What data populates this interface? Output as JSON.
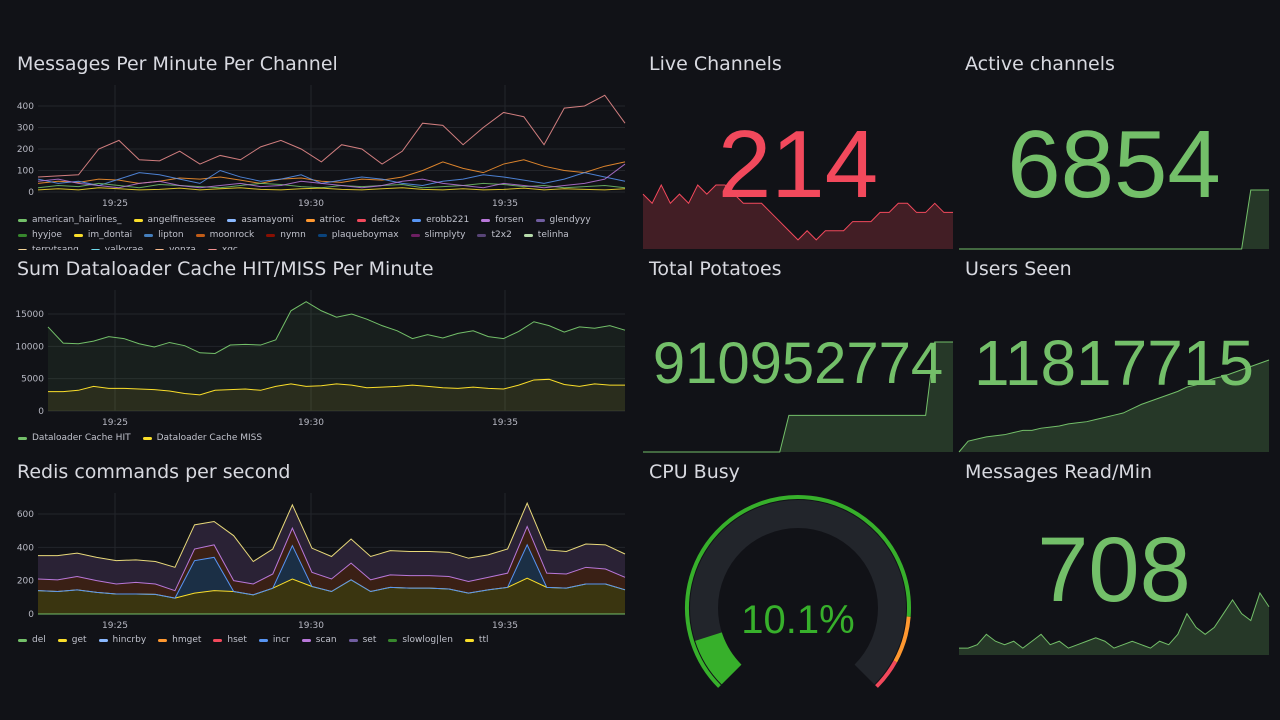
{
  "colors": {
    "green": "#73bf69",
    "red": "#f2495c",
    "grid": "#23252b"
  },
  "time_ticks": [
    "19:25",
    "19:30",
    "19:35"
  ],
  "messages_panel": {
    "title": "Messages Per Minute Per Channel",
    "y_ticks": [
      "0",
      "100",
      "200",
      "300",
      "400"
    ],
    "legend": [
      {
        "name": "american_hairlines_",
        "color": "#73bf69"
      },
      {
        "name": "angelfinesseee",
        "color": "#fade2a"
      },
      {
        "name": "asamayomi",
        "color": "#8ab8ff"
      },
      {
        "name": "atrioc",
        "color": "#ff9830"
      },
      {
        "name": "deft2x",
        "color": "#f2495c"
      },
      {
        "name": "erobb221",
        "color": "#5794f2"
      },
      {
        "name": "forsen",
        "color": "#b877d9"
      },
      {
        "name": "glendyyy",
        "color": "#705da0"
      },
      {
        "name": "hyyjoe",
        "color": "#37872d"
      },
      {
        "name": "im_dontai",
        "color": "#fade2a"
      },
      {
        "name": "lipton",
        "color": "#447ebc"
      },
      {
        "name": "moonrock",
        "color": "#c15c17"
      },
      {
        "name": "nymn",
        "color": "#890f02"
      },
      {
        "name": "plaqueboymax",
        "color": "#0a437c"
      },
      {
        "name": "slimplyty",
        "color": "#6d1f62"
      },
      {
        "name": "t2x2",
        "color": "#584477"
      },
      {
        "name": "telinha",
        "color": "#b7dbab"
      },
      {
        "name": "terrytsang",
        "color": "#f4d598"
      },
      {
        "name": "valkyrae",
        "color": "#70dbed"
      },
      {
        "name": "vonza",
        "color": "#f9ba8f"
      },
      {
        "name": "xqc",
        "color": "#f29191"
      }
    ],
    "series": [
      {
        "color": "#f29191",
        "values": [
          70,
          75,
          80,
          200,
          240,
          150,
          145,
          190,
          130,
          170,
          150,
          210,
          240,
          200,
          140,
          220,
          200,
          130,
          190,
          320,
          310,
          220,
          300,
          370,
          350,
          220,
          390,
          400,
          450,
          320
        ]
      },
      {
        "color": "#ff9830",
        "values": [
          40,
          50,
          45,
          60,
          55,
          40,
          50,
          65,
          60,
          70,
          55,
          40,
          60,
          65,
          50,
          45,
          60,
          55,
          70,
          100,
          140,
          110,
          90,
          130,
          150,
          120,
          100,
          90,
          120,
          140
        ]
      },
      {
        "color": "#5794f2",
        "values": [
          60,
          40,
          50,
          30,
          60,
          90,
          80,
          60,
          40,
          100,
          70,
          50,
          60,
          80,
          40,
          55,
          70,
          60,
          40,
          30,
          50,
          60,
          80,
          70,
          55,
          40,
          60,
          90,
          70,
          50
        ]
      },
      {
        "color": "#73bf69",
        "values": [
          20,
          30,
          25,
          40,
          30,
          20,
          35,
          30,
          25,
          20,
          30,
          40,
          35,
          25,
          20,
          30,
          25,
          30,
          35,
          20,
          25,
          30,
          40,
          35,
          25,
          30,
          20,
          25,
          30,
          20
        ]
      },
      {
        "color": "#b877d9",
        "values": [
          50,
          60,
          40,
          30,
          20,
          40,
          50,
          30,
          20,
          30,
          40,
          25,
          30,
          50,
          40,
          30,
          20,
          30,
          50,
          60,
          40,
          30,
          20,
          40,
          30,
          20,
          30,
          40,
          60,
          130
        ]
      },
      {
        "color": "#fade2a",
        "values": [
          10,
          15,
          10,
          20,
          15,
          10,
          12,
          18,
          10,
          15,
          20,
          12,
          10,
          15,
          18,
          12,
          10,
          15,
          20,
          12,
          10,
          15,
          10,
          12,
          18,
          10,
          15,
          12,
          10,
          15
        ]
      }
    ]
  },
  "cache_panel": {
    "title": "Sum Dataloader Cache HIT/MISS Per Minute",
    "y_ticks": [
      "0",
      "5000",
      "10000",
      "15000"
    ],
    "legend": [
      {
        "name": "Dataloader Cache HIT",
        "color": "#73bf69"
      },
      {
        "name": "Dataloader Cache MISS",
        "color": "#fade2a"
      }
    ],
    "series": [
      {
        "color": "#73bf69",
        "values": [
          13000,
          10500,
          10400,
          10800,
          11500,
          11200,
          10400,
          9900,
          10600,
          10100,
          9000,
          8900,
          10200,
          10300,
          10200,
          11000,
          15500,
          16900,
          15500,
          14500,
          15000,
          14200,
          13200,
          12400,
          11200,
          11800,
          11300,
          12000,
          12400,
          11500,
          11200,
          12300,
          13800,
          13200,
          12200,
          13000,
          12800,
          13200,
          12500
        ]
      },
      {
        "color": "#fade2a",
        "values": [
          3000,
          3000,
          3200,
          3800,
          3500,
          3500,
          3400,
          3300,
          3100,
          2700,
          2500,
          3200,
          3300,
          3400,
          3200,
          3800,
          4200,
          3800,
          3900,
          4200,
          4000,
          3600,
          3700,
          3800,
          4000,
          3800,
          3600,
          3500,
          3700,
          3500,
          3400,
          4000,
          4800,
          4900,
          4100,
          3800,
          4200,
          4000,
          4000
        ]
      }
    ]
  },
  "redis_panel": {
    "title": "Redis commands per second",
    "y_ticks": [
      "0",
      "200",
      "400",
      "600"
    ],
    "legend": [
      {
        "name": "del",
        "color": "#73bf69"
      },
      {
        "name": "get",
        "color": "#fade2a"
      },
      {
        "name": "hincrby",
        "color": "#8ab8ff"
      },
      {
        "name": "hmget",
        "color": "#ff9830"
      },
      {
        "name": "hset",
        "color": "#f2495c"
      },
      {
        "name": "incr",
        "color": "#5794f2"
      },
      {
        "name": "scan",
        "color": "#b877d9"
      },
      {
        "name": "set",
        "color": "#705da0"
      },
      {
        "name": "slowlog|len",
        "color": "#37872d"
      },
      {
        "name": "ttl",
        "color": "#fade2a"
      }
    ],
    "layers": [
      {
        "color": "#fade2a",
        "fill": "#3a3510",
        "values": [
          140,
          135,
          145,
          130,
          120,
          120,
          118,
          95,
          125,
          140,
          135,
          115,
          155,
          210,
          165,
          135,
          205,
          135,
          160,
          155,
          155,
          150,
          125,
          145,
          160,
          215,
          160,
          155,
          180,
          180,
          145
        ]
      },
      {
        "color": "#5794f2",
        "fill": "#1b2f45",
        "values": [
          140,
          135,
          145,
          130,
          120,
          120,
          118,
          95,
          320,
          340,
          135,
          115,
          155,
          410,
          165,
          135,
          205,
          135,
          160,
          155,
          155,
          150,
          125,
          145,
          160,
          415,
          160,
          155,
          180,
          180,
          145
        ]
      },
      {
        "color": "#b877d9",
        "fill": "#3a2015",
        "values": [
          210,
          205,
          225,
          200,
          180,
          190,
          180,
          140,
          390,
          415,
          200,
          180,
          240,
          515,
          250,
          210,
          305,
          205,
          235,
          230,
          230,
          225,
          195,
          220,
          245,
          525,
          245,
          240,
          280,
          270,
          220
        ]
      },
      {
        "color": "#e8d97a",
        "fill": "#2a2235",
        "values": [
          350,
          350,
          365,
          340,
          320,
          325,
          315,
          280,
          535,
          555,
          470,
          315,
          390,
          655,
          395,
          345,
          450,
          345,
          380,
          375,
          375,
          370,
          335,
          355,
          390,
          665,
          385,
          375,
          420,
          415,
          360
        ]
      }
    ]
  },
  "stats": {
    "live_channels": {
      "title": "Live Channels",
      "value": "214",
      "spark": [
        6,
        5,
        7,
        5,
        6,
        5,
        7,
        6,
        7,
        7,
        6,
        5,
        5,
        5,
        4,
        3,
        2,
        1,
        2,
        1,
        2,
        2,
        2,
        3,
        3,
        3,
        4,
        4,
        5,
        5,
        4,
        4,
        5,
        4,
        4
      ]
    },
    "active_channels": {
      "title": "Active channels",
      "value": "6854",
      "spark": [
        0,
        0,
        0,
        0,
        0,
        0,
        0,
        0,
        0,
        0,
        0,
        0,
        0,
        0,
        0,
        0,
        0,
        0,
        0,
        0,
        0,
        0,
        0,
        0,
        0,
        0,
        0,
        0,
        0,
        0,
        0,
        0,
        10,
        10,
        10
      ]
    },
    "total_potatoes": {
      "title": "Total Potatoes",
      "value": "910952774",
      "spark": [
        0,
        0,
        0,
        0,
        0,
        0,
        0,
        0,
        0,
        0,
        0,
        0,
        0,
        0,
        0,
        0,
        1,
        1,
        1,
        1,
        1,
        1,
        1,
        1,
        1,
        1,
        1,
        1,
        1,
        1,
        1,
        1,
        3,
        3,
        3
      ]
    },
    "users_seen": {
      "title": "Users Seen",
      "value": "11817715",
      "spark": [
        0,
        1,
        1.2,
        1.4,
        1.5,
        1.6,
        1.8,
        2,
        2,
        2.2,
        2.3,
        2.4,
        2.6,
        2.7,
        2.8,
        3,
        3.2,
        3.4,
        3.6,
        4,
        4.4,
        4.7,
        5,
        5.3,
        5.6,
        6,
        6.2,
        6.5,
        6.8,
        7,
        7.3,
        7.6,
        7.9,
        8.2,
        8.5
      ]
    },
    "messages_read": {
      "title": "Messages Read/Min",
      "value": "708",
      "spark": [
        1,
        1,
        1.5,
        3,
        2,
        1.5,
        2,
        1,
        2,
        3,
        1.5,
        2,
        1,
        1.5,
        2,
        2.5,
        2,
        1,
        1.5,
        2,
        1.5,
        1,
        2,
        1.5,
        3,
        6,
        4,
        3,
        4,
        6,
        8,
        6,
        5,
        9,
        7
      ]
    },
    "cpu_busy": {
      "title": "CPU Busy",
      "value": "10.1%",
      "percent": 10.1
    }
  }
}
